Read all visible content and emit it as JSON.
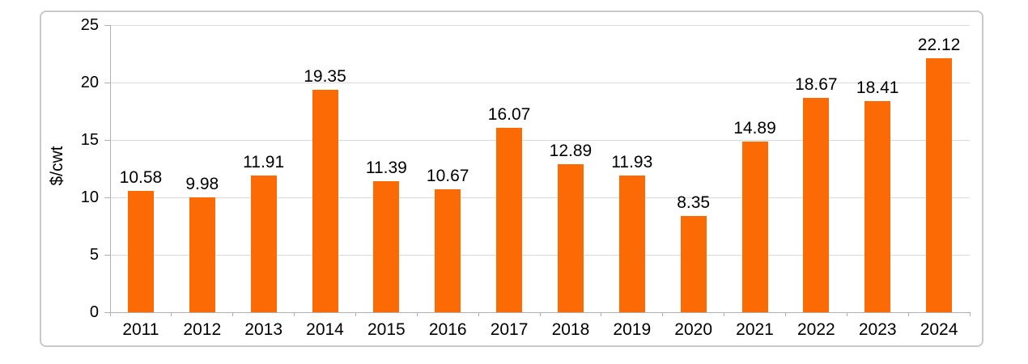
{
  "chart_data": {
    "type": "bar",
    "title": "",
    "xlabel": "",
    "ylabel": "$/cwt",
    "categories": [
      "2011",
      "2012",
      "2013",
      "2014",
      "2015",
      "2016",
      "2017",
      "2018",
      "2019",
      "2020",
      "2021",
      "2022",
      "2023",
      "2024"
    ],
    "values": [
      10.58,
      9.98,
      11.91,
      19.35,
      11.39,
      10.67,
      16.07,
      12.89,
      11.93,
      8.35,
      14.89,
      18.67,
      18.41,
      22.12
    ],
    "value_label_decimals": 2,
    "ylim": [
      0,
      25
    ],
    "yticks": [
      0,
      5,
      10,
      15,
      20,
      25
    ],
    "grid": true,
    "legend_position": "none",
    "bar_color": "#fb6a05"
  },
  "colors": {
    "bar": "#fb6a05",
    "gridline": "#d9d9d9",
    "axis": "#b0b0b0",
    "panel_border": "#c9c9c9",
    "text": "#000000",
    "background": "#ffffff"
  }
}
